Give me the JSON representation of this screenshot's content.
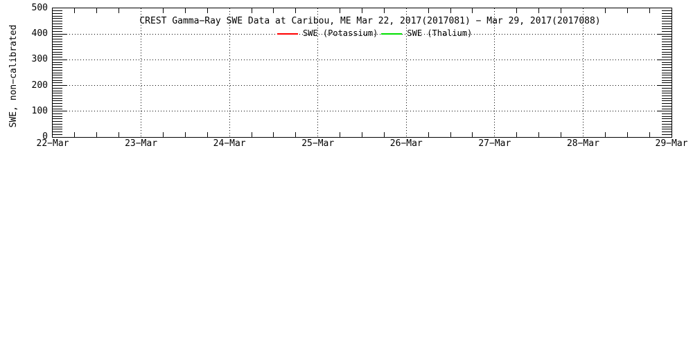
{
  "figure": {
    "background_color": "#ffffff",
    "axis_color": "#000000",
    "text_color": "#000000"
  },
  "chart_data": {
    "type": "line",
    "title": "CREST Gamma−Ray SWE Data at Caribou, ME   Mar 22, 2017(2017081) − Mar 29, 2017(2017088)",
    "xlabel": "",
    "ylabel": "SWE, non−calibrated",
    "ylim": [
      0,
      500
    ],
    "y_major_ticks": [
      0,
      100,
      200,
      300,
      400,
      500
    ],
    "y_minor_tick_interval": 10,
    "x_tick_labels": [
      "22−Mar",
      "23−Mar",
      "24−Mar",
      "25−Mar",
      "26−Mar",
      "27−Mar",
      "28−Mar",
      "29−Mar"
    ],
    "x_minor_ticks_per_interval": 4,
    "grid": "dotted",
    "legend_position": "top-center-inside",
    "series": [
      {
        "name": "SWE (Potassium)",
        "color": "#ff0000",
        "x": [],
        "y": []
      },
      {
        "name": "SWE (Thalium)",
        "color": "#00e000",
        "x": [],
        "y": []
      }
    ]
  }
}
